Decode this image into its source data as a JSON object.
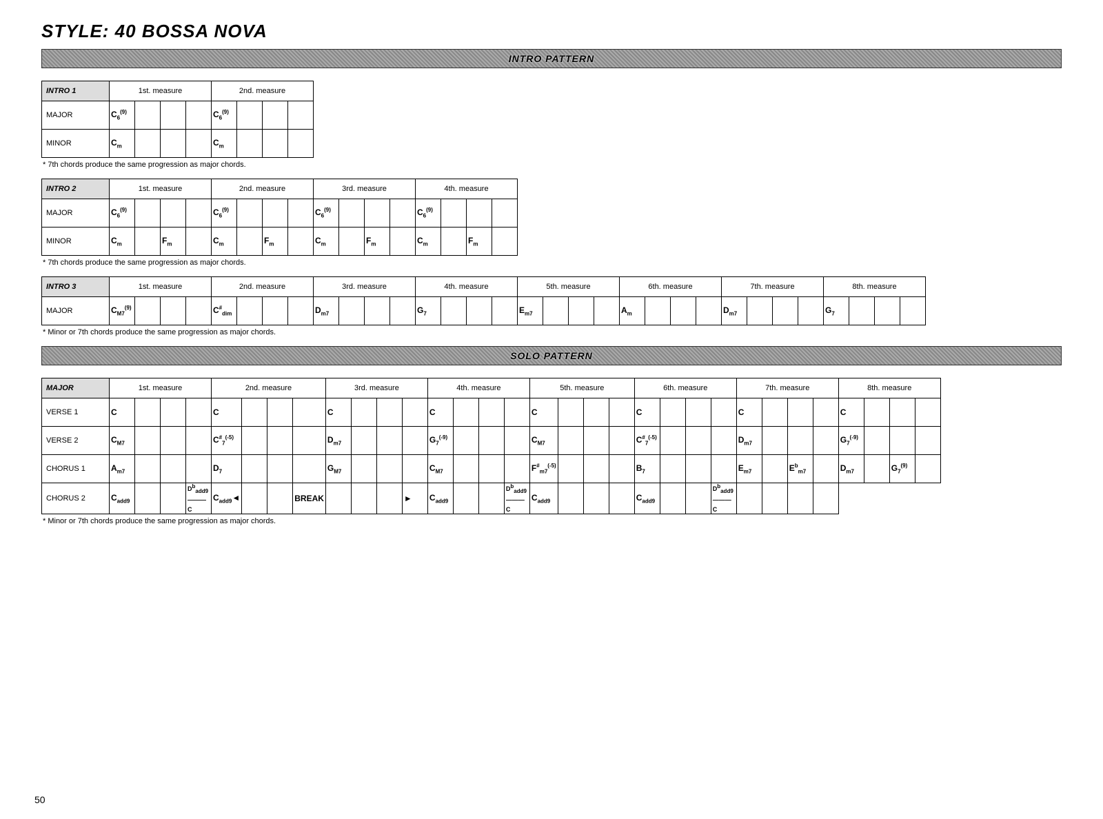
{
  "title": "STYLE: 40 BOSSA NOVA",
  "pageNumber": "50",
  "banners": {
    "intro": "INTRO PATTERN",
    "solo": "SOLO PATTERN"
  },
  "notes": {
    "seventh": "* 7th chords produce the same progression as major chords.",
    "minorOrSeventh": "* Minor or 7th chords produce the same progression as major chords."
  },
  "measureLabels": [
    "1st. measure",
    "2nd. measure",
    "3rd. measure",
    "4th. measure",
    "5th. measure",
    "6th. measure",
    "7th. measure",
    "8th. measure"
  ],
  "intro1": {
    "header": "INTRO 1",
    "measures": 2,
    "rows": [
      {
        "label": "MAJOR",
        "cells": [
          "C6(9)",
          "",
          "",
          "",
          "C6(9)",
          "",
          "",
          ""
        ]
      },
      {
        "label": "MINOR",
        "cells": [
          "Cm",
          "",
          "",
          "",
          "Cm",
          "",
          "",
          ""
        ]
      }
    ]
  },
  "intro2": {
    "header": "INTRO 2",
    "measures": 4,
    "rows": [
      {
        "label": "MAJOR",
        "cells": [
          "C6(9)",
          "",
          "",
          "",
          "C6(9)",
          "",
          "",
          "",
          "C6(9)",
          "",
          "",
          "",
          "C6(9)",
          "",
          "",
          ""
        ]
      },
      {
        "label": "MINOR",
        "cells": [
          "Cm",
          "",
          "Fm",
          "",
          "Cm",
          "",
          "Fm",
          "",
          "Cm",
          "",
          "Fm",
          "",
          "Cm",
          "",
          "Fm",
          ""
        ]
      }
    ]
  },
  "intro3": {
    "header": "INTRO 3",
    "measures": 8,
    "rows": [
      {
        "label": "MAJOR",
        "cells": [
          "CM7(9)",
          "",
          "",
          "",
          "C#dim",
          "",
          "",
          "",
          "Dm7",
          "",
          "",
          "",
          "G7",
          "",
          "",
          "",
          "Em7",
          "",
          "",
          "",
          "Am",
          "",
          "",
          "",
          "Dm7",
          "",
          "",
          "",
          "G7",
          "",
          "",
          ""
        ]
      }
    ]
  },
  "solo": {
    "header": "MAJOR",
    "measures": 8,
    "rows": [
      {
        "label": "VERSE 1",
        "cells": [
          "C",
          "",
          "",
          "",
          "C",
          "",
          "",
          "",
          "C",
          "",
          "",
          "",
          "C",
          "",
          "",
          "",
          "C",
          "",
          "",
          "",
          "C",
          "",
          "",
          "",
          "C",
          "",
          "",
          "",
          "C",
          "",
          "",
          ""
        ]
      },
      {
        "label": "VERSE 2",
        "cells": [
          "CM7",
          "",
          "",
          "",
          "C#7(-5)",
          "",
          "",
          "",
          "Dm7",
          "",
          "",
          "",
          "G7(-9)",
          "",
          "",
          "",
          "CM7",
          "",
          "",
          "",
          "C#7(-5)",
          "",
          "",
          "",
          "Dm7",
          "",
          "",
          "",
          "G7(-9)",
          "",
          "",
          ""
        ]
      },
      {
        "label": "CHORUS 1",
        "cells": [
          "Am7",
          "",
          "",
          "",
          "D7",
          "",
          "",
          "",
          "GM7",
          "",
          "",
          "",
          "CM7",
          "",
          "",
          "",
          "F#m7(-5)",
          "",
          "",
          "",
          "B7",
          "",
          "",
          "",
          "Em7",
          "",
          "Ebm7",
          "",
          "Dm7",
          "",
          "G7(9)",
          ""
        ]
      },
      {
        "label": "CHORUS 2",
        "cells": [
          "Cadd9",
          "",
          "",
          "Dbadd9/C",
          "Cadd9◄",
          "",
          "",
          "BREAK",
          "",
          "",
          "",
          "►",
          "Cadd9",
          "",
          "",
          "Dbadd9/C",
          "Cadd9",
          "",
          "",
          "",
          "Cadd9",
          "",
          "",
          "Dbadd9/C",
          "",
          "",
          "",
          ""
        ]
      }
    ]
  }
}
